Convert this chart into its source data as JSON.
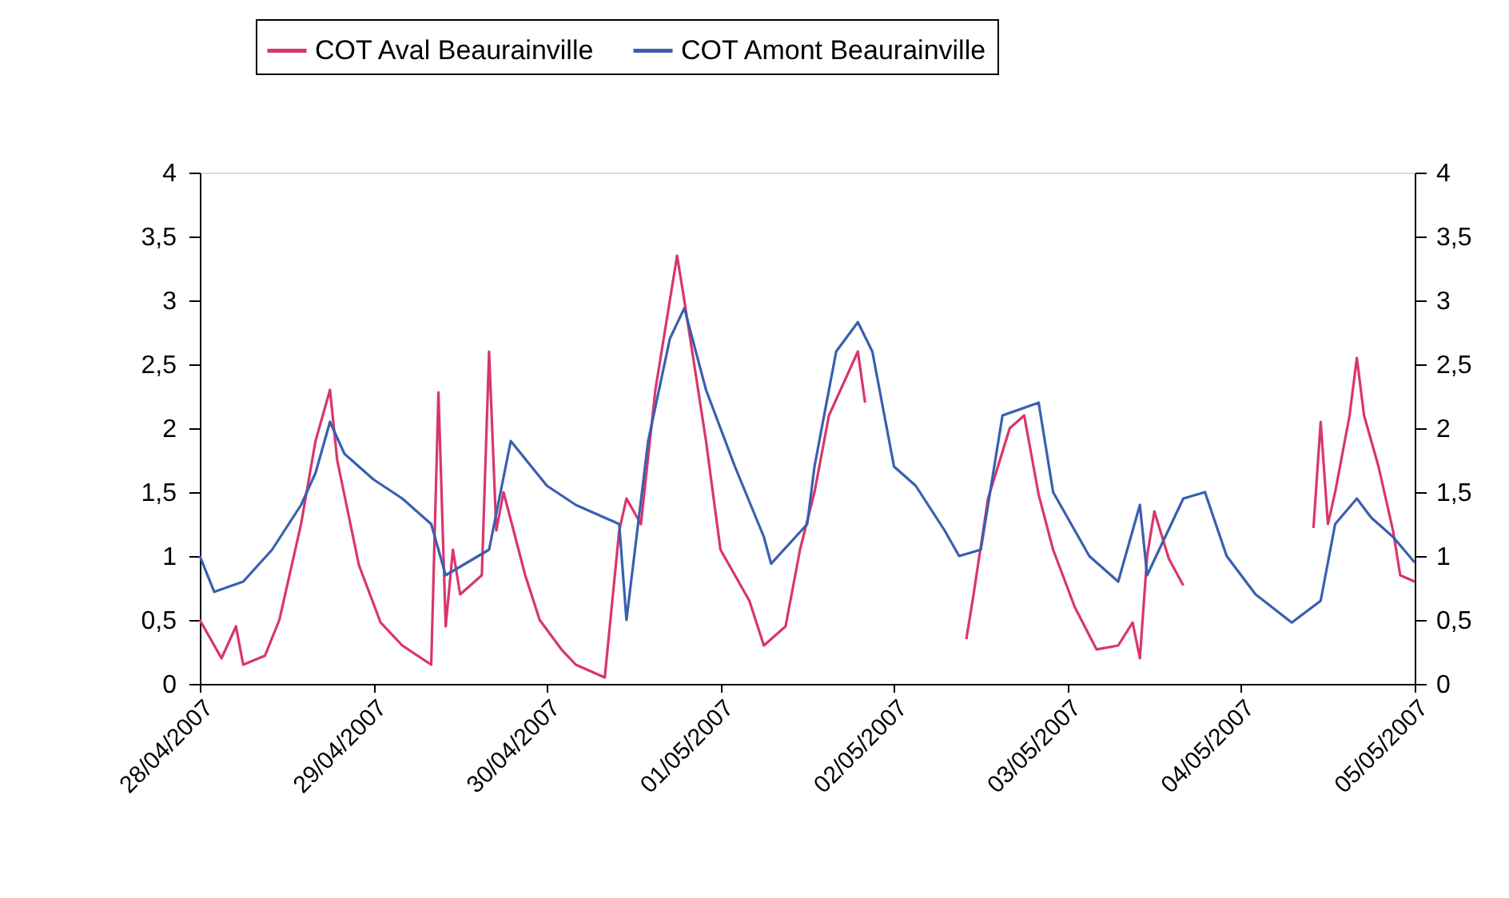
{
  "chart_data": {
    "type": "line",
    "series": [
      {
        "name": "COT Aval Beaurainville",
        "color": "#d9366b",
        "x": [
          "2007-04-28T00:00",
          "2007-04-28T03:00",
          "2007-04-28T05:00",
          "2007-04-28T06:00",
          "2007-04-28T09:00",
          "2007-04-28T11:00",
          "2007-04-28T14:00",
          "2007-04-28T16:00",
          "2007-04-28T18:00",
          "2007-04-28T19:00",
          "2007-04-28T22:00",
          "2007-04-29T01:00",
          "2007-04-29T04:00",
          "2007-04-29T08:00",
          "2007-04-29T09:00",
          "2007-04-29T10:00",
          "2007-04-29T11:00",
          "2007-04-29T12:00",
          "2007-04-29T15:00",
          "2007-04-29T16:00",
          "2007-04-29T17:00",
          "2007-04-29T18:00",
          "2007-04-29T21:00",
          "2007-04-29T23:00",
          "2007-04-30T02:00",
          "2007-04-30T04:00",
          "2007-04-30T08:00",
          "2007-04-30T10:00",
          "2007-04-30T11:00",
          "2007-04-30T13:00",
          "2007-04-30T15:00",
          "2007-04-30T18:00",
          "2007-04-30T19:00",
          "2007-04-30T22:00",
          "2007-05-01T00:00",
          "2007-05-01T04:00",
          "2007-05-01T06:00",
          "2007-05-01T09:00",
          "2007-05-01T11:00",
          "2007-05-01T13:00",
          "2007-05-01T15:00",
          "2007-05-01T19:00",
          "2007-05-01T20:00",
          "2007-05-01T21:00",
          "2007-05-02T10:00",
          "2007-05-02T11:00",
          "2007-05-02T13:00",
          "2007-05-02T16:00",
          "2007-05-02T18:00",
          "2007-05-02T20:00",
          "2007-05-02T22:00",
          "2007-05-03T01:00",
          "2007-05-03T04:00",
          "2007-05-03T07:00",
          "2007-05-03T09:00",
          "2007-05-03T10:00",
          "2007-05-03T11:00",
          "2007-05-03T12:00",
          "2007-05-03T14:00",
          "2007-05-03T16:00",
          "2007-05-03T17:00",
          "2007-05-04T10:00",
          "2007-05-04T11:00",
          "2007-05-04T12:00",
          "2007-05-04T13:00",
          "2007-05-04T15:00",
          "2007-05-04T16:00",
          "2007-05-04T17:00",
          "2007-05-04T19:00",
          "2007-05-04T21:00",
          "2007-05-04T22:00",
          "2007-05-05T00:00"
        ],
        "values": [
          0.5,
          0.2,
          0.45,
          0.15,
          0.22,
          0.5,
          1.25,
          1.9,
          2.3,
          1.75,
          0.93,
          0.48,
          0.3,
          0.15,
          2.28,
          0.45,
          1.05,
          0.7,
          0.85,
          2.6,
          1.2,
          1.5,
          0.85,
          0.5,
          0.27,
          0.15,
          0.05,
          1.2,
          1.45,
          1.25,
          2.3,
          3.35,
          3.0,
          1.9,
          1.05,
          0.65,
          0.3,
          0.45,
          1.05,
          1.5,
          2.1,
          2.6,
          2.2,
          null,
          0.35,
          0.7,
          1.45,
          2.0,
          2.1,
          1.48,
          1.05,
          0.6,
          0.27,
          0.3,
          0.48,
          0.2,
          1.0,
          1.35,
          0.98,
          0.77,
          null,
          1.22,
          2.05,
          1.25,
          1.5,
          2.1,
          2.55,
          2.1,
          1.7,
          1.2,
          0.85,
          0.8
        ]
      },
      {
        "name": "COT Amont Beaurainville",
        "color": "#3a5fb0",
        "x": [
          "2007-04-28T00:00",
          "2007-04-28T02:00",
          "2007-04-28T06:00",
          "2007-04-28T10:00",
          "2007-04-28T14:00",
          "2007-04-28T16:00",
          "2007-04-28T18:00",
          "2007-04-28T20:00",
          "2007-04-29T00:00",
          "2007-04-29T04:00",
          "2007-04-29T08:00",
          "2007-04-29T10:00",
          "2007-04-29T16:00",
          "2007-04-29T19:00",
          "2007-04-30T00:00",
          "2007-04-30T04:00",
          "2007-04-30T08:00",
          "2007-04-30T10:00",
          "2007-04-30T11:00",
          "2007-04-30T14:00",
          "2007-04-30T17:00",
          "2007-04-30T19:00",
          "2007-04-30T22:00",
          "2007-05-01T02:00",
          "2007-05-01T06:00",
          "2007-05-01T07:00",
          "2007-05-01T12:00",
          "2007-05-01T13:00",
          "2007-05-01T16:00",
          "2007-05-01T19:00",
          "2007-05-01T21:00",
          "2007-05-02T00:00",
          "2007-05-02T03:00",
          "2007-05-02T07:00",
          "2007-05-02T09:00",
          "2007-05-02T12:00",
          "2007-05-02T15:00",
          "2007-05-02T20:00",
          "2007-05-02T22:00",
          "2007-05-03T03:00",
          "2007-05-03T07:00",
          "2007-05-03T10:00",
          "2007-05-03T11:00",
          "2007-05-03T16:00",
          "2007-05-03T19:00",
          "2007-05-03T22:00",
          "2007-05-04T02:00",
          "2007-05-04T07:00",
          "2007-05-04T11:00",
          "2007-05-04T13:00",
          "2007-05-04T16:00",
          "2007-05-04T18:00",
          "2007-05-04T21:00",
          "2007-05-05T00:00"
        ],
        "values": [
          1.0,
          0.72,
          0.8,
          1.05,
          1.4,
          1.65,
          2.05,
          1.8,
          1.6,
          1.45,
          1.25,
          0.85,
          1.05,
          1.9,
          1.55,
          1.4,
          1.3,
          1.25,
          0.5,
          1.9,
          2.7,
          2.94,
          2.3,
          1.7,
          1.15,
          0.94,
          1.25,
          1.7,
          2.6,
          2.83,
          2.6,
          1.7,
          1.55,
          1.2,
          1.0,
          1.05,
          2.1,
          2.2,
          1.5,
          1.0,
          0.8,
          1.4,
          0.85,
          1.45,
          1.5,
          1.0,
          0.7,
          0.48,
          0.65,
          1.25,
          1.45,
          1.3,
          1.15,
          0.95
        ]
      }
    ],
    "xlim": [
      "2007-04-28",
      "2007-05-05"
    ],
    "xticks": [
      {
        "value": "2007-04-28",
        "label": "28/04/2007"
      },
      {
        "value": "2007-04-29",
        "label": "29/04/2007"
      },
      {
        "value": "2007-04-30",
        "label": "30/04/2007"
      },
      {
        "value": "2007-05-01",
        "label": "01/05/2007"
      },
      {
        "value": "2007-05-02",
        "label": "02/05/2007"
      },
      {
        "value": "2007-05-03",
        "label": "03/05/2007"
      },
      {
        "value": "2007-05-04",
        "label": "04/05/2007"
      },
      {
        "value": "2007-05-05",
        "label": "05/05/2007"
      }
    ],
    "ylim": [
      0,
      4
    ],
    "yticks": [
      {
        "value": 0,
        "label": "0"
      },
      {
        "value": 0.5,
        "label": "0,5"
      },
      {
        "value": 1,
        "label": "1"
      },
      {
        "value": 1.5,
        "label": "1,5"
      },
      {
        "value": 2,
        "label": "2"
      },
      {
        "value": 2.5,
        "label": "2,5"
      },
      {
        "value": 3,
        "label": "3"
      },
      {
        "value": 3.5,
        "label": "3,5"
      },
      {
        "value": 4,
        "label": "4"
      }
    ],
    "y2lim": [
      0,
      4
    ],
    "y2ticks": [
      {
        "value": 0,
        "label": "0"
      },
      {
        "value": 0.5,
        "label": "0,5"
      },
      {
        "value": 1,
        "label": "1"
      },
      {
        "value": 1.5,
        "label": "1,5"
      },
      {
        "value": 2,
        "label": "2"
      },
      {
        "value": 2.5,
        "label": "2,5"
      },
      {
        "value": 3,
        "label": "3"
      },
      {
        "value": 3.5,
        "label": "3,5"
      },
      {
        "value": 4,
        "label": "4"
      }
    ],
    "legend": "top",
    "grid": false,
    "line_style": "solid"
  }
}
